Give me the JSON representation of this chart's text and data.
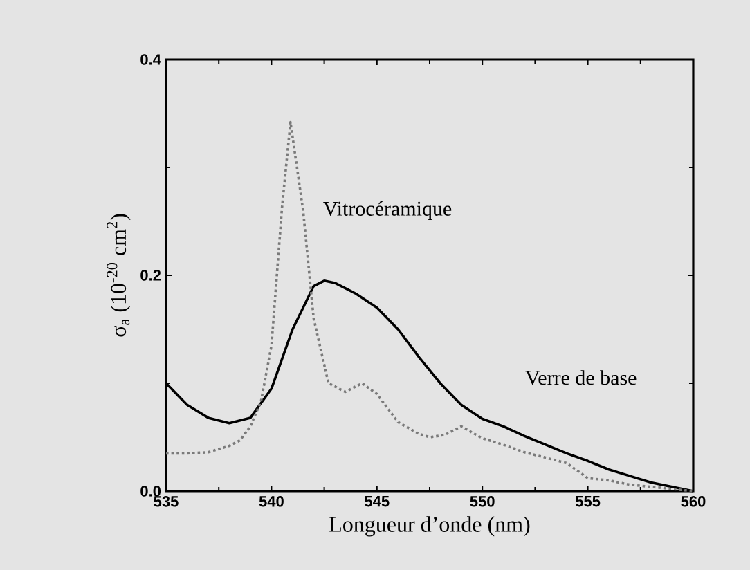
{
  "chart_data": {
    "type": "line",
    "xlabel": "Longueur d’onde (nm)",
    "ylabel": "σ$_{a}$ (10$^{-20}$ cm$^{2}$)",
    "xlim": [
      535,
      560
    ],
    "xticks": [
      535,
      540,
      545,
      550,
      555,
      560
    ],
    "ylim": [
      0,
      0.4
    ],
    "yticks": [
      {
        "value": 0,
        "label": "0.0"
      },
      {
        "value": 0.2,
        "label": "0.2"
      },
      {
        "value": 0.4,
        "label": "0.4"
      }
    ],
    "grid": false,
    "series": [
      {
        "name": "Verre de base",
        "color": "#000000",
        "line_style": "solid",
        "x": [
          535,
          536,
          537,
          538,
          539,
          540,
          541,
          542,
          542.5,
          543,
          544,
          545,
          546,
          547,
          548,
          549,
          550,
          551,
          552,
          553,
          554,
          555,
          556,
          557,
          558,
          559,
          560
        ],
        "values": [
          0.1,
          0.08,
          0.068,
          0.063,
          0.068,
          0.095,
          0.15,
          0.19,
          0.195,
          0.193,
          0.183,
          0.17,
          0.15,
          0.124,
          0.1,
          0.08,
          0.067,
          0.06,
          0.051,
          0.043,
          0.035,
          0.028,
          0.02,
          0.014,
          0.008,
          0.004,
          0
        ]
      },
      {
        "name": "Vitrocéramique",
        "color": "#7a7a7a",
        "line_style": "dotted",
        "x": [
          535,
          536,
          537,
          538,
          538.5,
          539,
          539.5,
          540,
          540.5,
          540.9,
          541.5,
          542,
          542.7,
          543.5,
          544.3,
          545,
          546,
          547,
          547.5,
          548.2,
          549,
          550,
          551,
          552,
          553,
          554,
          555,
          556,
          557,
          558,
          559,
          560
        ],
        "values": [
          0.035,
          0.035,
          0.036,
          0.042,
          0.047,
          0.06,
          0.083,
          0.135,
          0.263,
          0.342,
          0.26,
          0.16,
          0.1,
          0.092,
          0.1,
          0.09,
          0.064,
          0.053,
          0.05,
          0.052,
          0.06,
          0.049,
          0.043,
          0.036,
          0.031,
          0.026,
          0.012,
          0.01,
          0.006,
          0.004,
          0.002,
          0
        ]
      }
    ]
  }
}
